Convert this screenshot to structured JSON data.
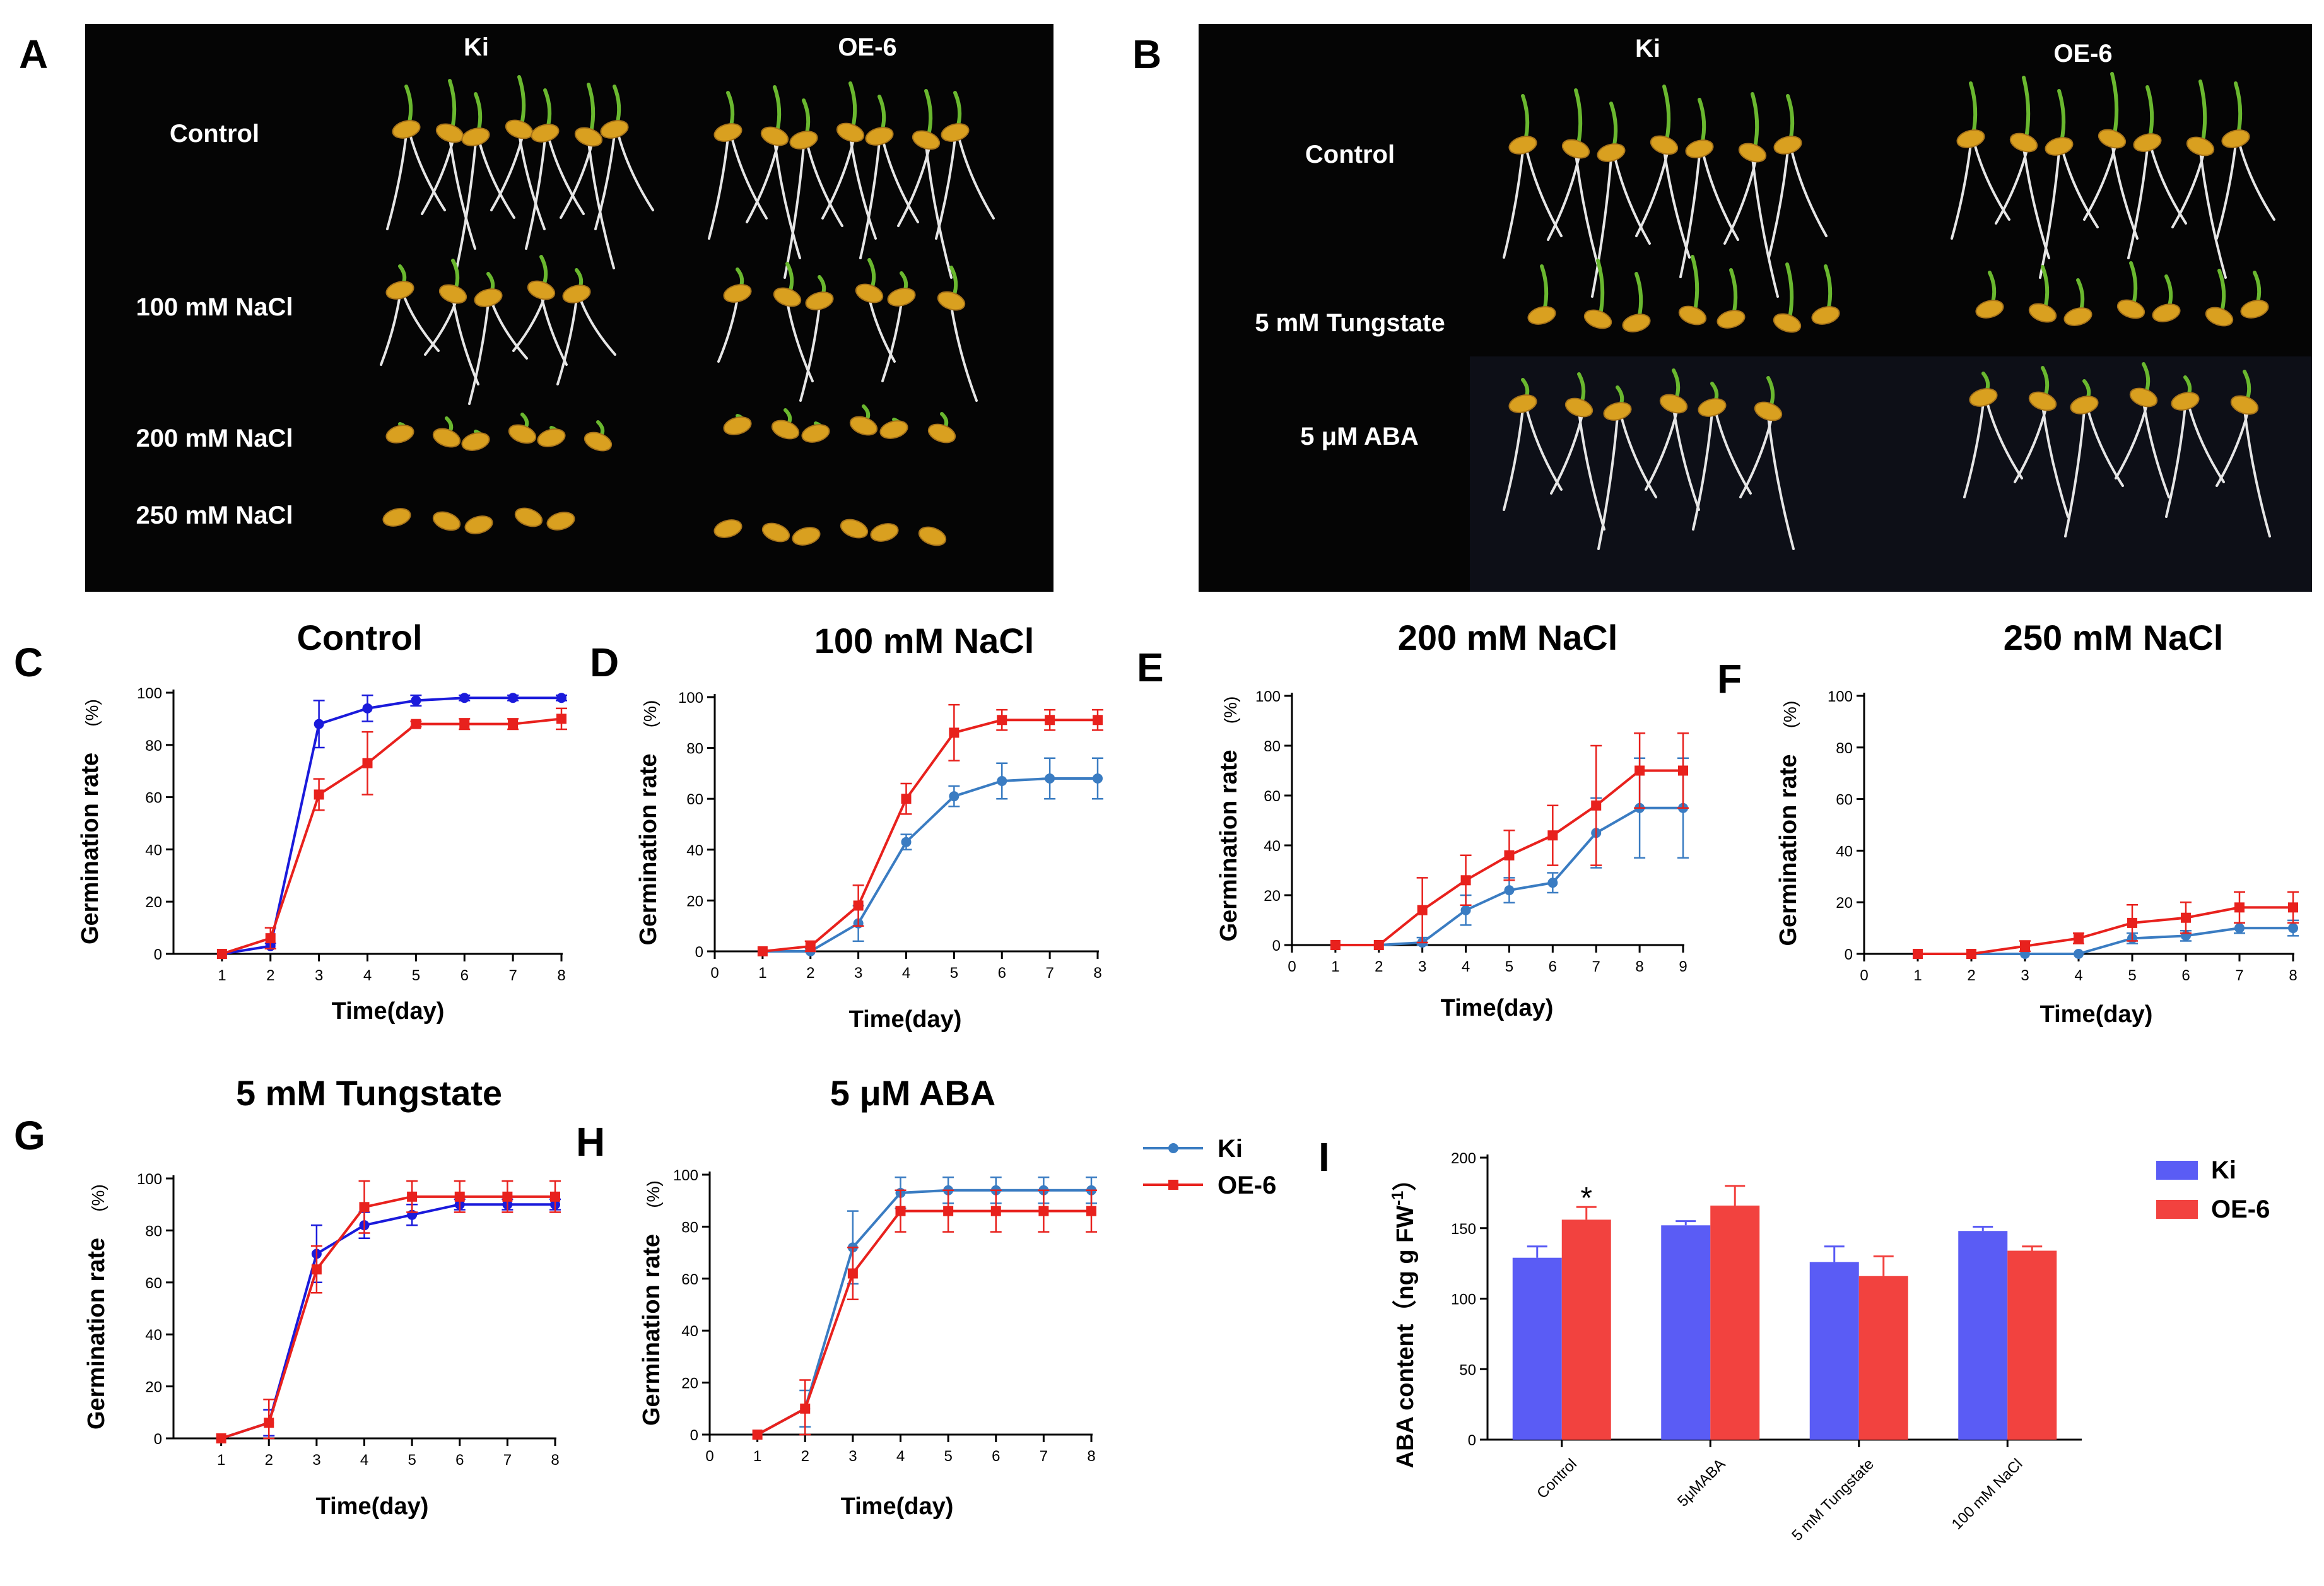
{
  "panel_labels": {
    "A": "A",
    "B": "B",
    "C": "C",
    "D": "D",
    "E": "E",
    "F": "F",
    "G": "G",
    "H": "H",
    "I": "I"
  },
  "photoA": {
    "cols": [
      "Ki",
      "OE-6"
    ],
    "rows": [
      "Control",
      "100 mM NaCl",
      "200 mM NaCl",
      "250 mM NaCl"
    ]
  },
  "photoB": {
    "cols": [
      "Ki",
      "OE-6"
    ],
    "rows": [
      "Control",
      "5 mM Tungstate",
      "5 μM ABA"
    ]
  },
  "colors": {
    "ki_blue_dark": "#1a1adb",
    "oe_red": "#e8211d",
    "ki_blue_light": "#3a7cc2",
    "bar_blue": "#5a5cf5",
    "bar_red": "#f2423f"
  },
  "chart_data": [
    {
      "id": "C",
      "type": "line",
      "title": "Control",
      "xlabel": "Time(day)",
      "ylabel": "Germination rate",
      "ylabel_unit": "(%)",
      "ylim": [
        0,
        100
      ],
      "yticks": [
        0,
        20,
        40,
        60,
        80,
        100
      ],
      "x": [
        1,
        2,
        3,
        4,
        5,
        6,
        7,
        8
      ],
      "xticks": [
        1,
        2,
        3,
        4,
        5,
        6,
        7,
        8
      ],
      "series": [
        {
          "name": "Ki",
          "color": "#1a1adb",
          "marker": "circle",
          "values": [
            0,
            3,
            88,
            94,
            97,
            98,
            98,
            98
          ],
          "err": [
            0,
            1,
            9,
            5,
            2,
            1,
            1,
            1
          ]
        },
        {
          "name": "OE-6",
          "color": "#e8211d",
          "marker": "square",
          "values": [
            0,
            6,
            61,
            73,
            88,
            88,
            88,
            90
          ],
          "err": [
            0,
            4,
            6,
            12,
            1,
            2,
            2,
            4
          ]
        }
      ]
    },
    {
      "id": "D",
      "type": "line",
      "title": "100 mM NaCl",
      "xlabel": "Time(day)",
      "ylabel": "Germination rate",
      "ylabel_unit": "(%)",
      "ylim": [
        0,
        100
      ],
      "yticks": [
        0,
        20,
        40,
        60,
        80,
        100
      ],
      "x": [
        1,
        2,
        3,
        4,
        5,
        6,
        7,
        8
      ],
      "xticks": [
        0,
        1,
        2,
        3,
        4,
        5,
        6,
        7,
        8
      ],
      "series": [
        {
          "name": "Ki",
          "color": "#3a7cc2",
          "marker": "circle",
          "values": [
            0,
            0,
            11,
            43,
            61,
            67,
            68,
            68
          ],
          "err": [
            0,
            1,
            7,
            3,
            4,
            7,
            8,
            8
          ]
        },
        {
          "name": "OE-6",
          "color": "#e8211d",
          "marker": "square",
          "values": [
            0,
            2,
            18,
            60,
            86,
            91,
            91,
            91
          ],
          "err": [
            0,
            2,
            8,
            6,
            11,
            4,
            4,
            4
          ]
        }
      ]
    },
    {
      "id": "E",
      "type": "line",
      "title": "200 mM NaCl",
      "xlabel": "Time(day)",
      "ylabel": "Germination rate",
      "ylabel_unit": "(%)",
      "ylim": [
        0,
        100
      ],
      "yticks": [
        0,
        20,
        40,
        60,
        80,
        100
      ],
      "x": [
        1,
        2,
        3,
        4,
        5,
        6,
        7,
        8,
        9
      ],
      "xticks": [
        0,
        1,
        2,
        3,
        4,
        5,
        6,
        7,
        8,
        9
      ],
      "series": [
        {
          "name": "Ki",
          "color": "#3a7cc2",
          "marker": "circle",
          "values": [
            0,
            0,
            1,
            14,
            22,
            25,
            45,
            55,
            55
          ],
          "err": [
            0,
            0,
            2,
            6,
            5,
            4,
            14,
            20,
            20
          ]
        },
        {
          "name": "OE-6",
          "color": "#e8211d",
          "marker": "square",
          "values": [
            0,
            0,
            14,
            26,
            36,
            44,
            56,
            70,
            70
          ],
          "err": [
            0,
            0,
            13,
            10,
            10,
            12,
            24,
            15,
            15
          ]
        }
      ]
    },
    {
      "id": "F",
      "type": "line",
      "title": "250 mM NaCl",
      "xlabel": "Time(day)",
      "ylabel": "Germination rate",
      "ylabel_unit": "(%)",
      "ylim": [
        0,
        100
      ],
      "yticks": [
        0,
        20,
        40,
        60,
        80,
        100
      ],
      "x": [
        1,
        2,
        3,
        4,
        5,
        6,
        7,
        8
      ],
      "xticks": [
        0,
        1,
        2,
        3,
        4,
        5,
        6,
        7,
        8
      ],
      "series": [
        {
          "name": "Ki",
          "color": "#3a7cc2",
          "marker": "circle",
          "values": [
            0,
            0,
            0,
            0,
            6,
            7,
            10,
            10
          ],
          "err": [
            0,
            0,
            0,
            0,
            2,
            2,
            2,
            3
          ]
        },
        {
          "name": "OE-6",
          "color": "#e8211d",
          "marker": "square",
          "values": [
            0,
            0,
            3,
            6,
            12,
            14,
            18,
            18
          ],
          "err": [
            0,
            0,
            2,
            2,
            7,
            6,
            6,
            6
          ]
        }
      ]
    },
    {
      "id": "G",
      "type": "line",
      "title": "5 mM Tungstate",
      "xlabel": "Time(day)",
      "ylabel": "Germination rate",
      "ylabel_unit": "(%)",
      "ylim": [
        0,
        100
      ],
      "yticks": [
        0,
        20,
        40,
        60,
        80,
        100
      ],
      "x": [
        1,
        2,
        3,
        4,
        5,
        6,
        7,
        8
      ],
      "xticks": [
        1,
        2,
        3,
        4,
        5,
        6,
        7,
        8
      ],
      "series": [
        {
          "name": "Ki",
          "color": "#1a1adb",
          "marker": "circle",
          "values": [
            0,
            6,
            71,
            82,
            86,
            90,
            90,
            90
          ],
          "err": [
            0,
            5,
            11,
            5,
            4,
            2,
            2,
            2
          ]
        },
        {
          "name": "OE-6",
          "color": "#e8211d",
          "marker": "square",
          "values": [
            0,
            6,
            65,
            89,
            93,
            93,
            93,
            93
          ],
          "err": [
            0,
            9,
            9,
            10,
            6,
            6,
            6,
            6
          ]
        }
      ]
    },
    {
      "id": "H",
      "type": "line",
      "title": "5 μM ABA",
      "xlabel": "Time(day)",
      "ylabel": "Germination rate",
      "ylabel_unit": "(%)",
      "ylim": [
        0,
        100
      ],
      "yticks": [
        0,
        20,
        40,
        60,
        80,
        100
      ],
      "x": [
        1,
        2,
        3,
        4,
        5,
        6,
        7,
        8
      ],
      "xticks": [
        0,
        1,
        2,
        3,
        4,
        5,
        6,
        7,
        8
      ],
      "series": [
        {
          "name": "Ki",
          "color": "#3a7cc2",
          "marker": "circle",
          "values": [
            0,
            10,
            72,
            93,
            94,
            94,
            94,
            94
          ],
          "err": [
            0,
            7,
            14,
            6,
            5,
            5,
            5,
            5
          ]
        },
        {
          "name": "OE-6",
          "color": "#e8211d",
          "marker": "square",
          "values": [
            0,
            10,
            62,
            86,
            86,
            86,
            86,
            86
          ],
          "err": [
            0,
            11,
            10,
            8,
            8,
            8,
            8,
            8
          ]
        }
      ],
      "legend": [
        {
          "name": "Ki",
          "color": "#3a7cc2"
        },
        {
          "name": "OE-6",
          "color": "#e8211d"
        }
      ]
    },
    {
      "id": "I",
      "type": "bar",
      "title": "",
      "xlabel": "",
      "ylabel": "ABA content（ng g FW",
      "ylabel_sup": "-1",
      "ylabel_close": "）",
      "ylim": [
        0,
        200
      ],
      "yticks": [
        0,
        50,
        100,
        150,
        200
      ],
      "categories": [
        "Control",
        "5μMABA",
        "5 mM Tungstate",
        "100 mM NaCl"
      ],
      "series": [
        {
          "name": "Ki",
          "color": "#5a5cf5",
          "values": [
            129,
            152,
            126,
            148
          ],
          "err": [
            8,
            3,
            11,
            3
          ]
        },
        {
          "name": "OE-6",
          "color": "#f2423f",
          "values": [
            156,
            166,
            116,
            134
          ],
          "err": [
            9,
            14,
            14,
            3
          ]
        }
      ],
      "annotations": [
        {
          "category": "Control",
          "series": "OE-6",
          "text": "*"
        }
      ],
      "legend": [
        {
          "name": "Ki",
          "color": "#5a5cf5"
        },
        {
          "name": "OE-6",
          "color": "#f2423f"
        }
      ]
    }
  ]
}
